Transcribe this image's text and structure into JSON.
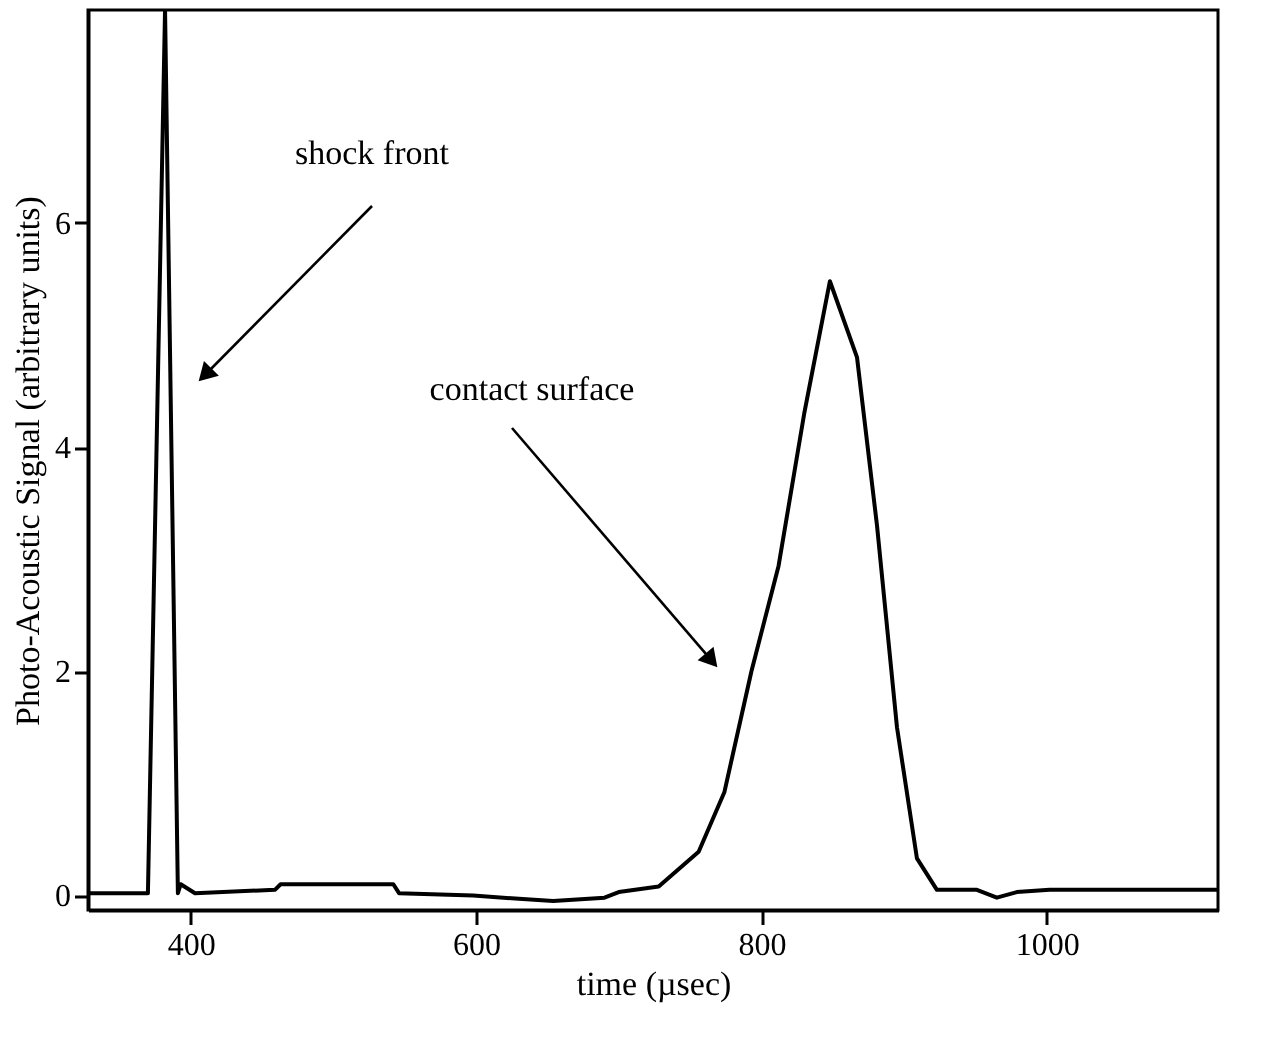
{
  "chart_data": {
    "type": "line",
    "xlabel": "time (µsec)",
    "ylabel": "Photo-Acoustic Signal (arbitrary units)",
    "x": [
      328,
      370,
      382,
      391,
      393,
      403,
      459,
      463,
      542,
      546,
      598,
      630,
      654,
      690,
      700,
      728,
      756,
      774,
      793,
      812,
      830,
      848,
      867,
      881,
      895,
      909,
      923,
      951,
      965,
      979,
      1002,
      1120
    ],
    "series": [
      {
        "color": "#000000",
        "values": [
          0.02,
          0.02,
          7.9,
          0.02,
          0.1,
          0.02,
          0.05,
          0.1,
          0.1,
          0.02,
          0.0,
          -0.03,
          -0.05,
          -0.02,
          0.03,
          0.08,
          0.39,
          0.92,
          2.0,
          2.94,
          4.3,
          5.48,
          4.8,
          3.3,
          1.5,
          0.33,
          0.05,
          0.05,
          -0.02,
          0.03,
          0.05,
          0.05
        ]
      }
    ],
    "annotations": [
      "shock front",
      "contact surface"
    ],
    "xlim": [
      328,
      1120
    ],
    "ylim": [
      -0.13,
      7.9
    ],
    "xticks": [
      400,
      600,
      800,
      1000
    ],
    "yticks": [
      0,
      2,
      4,
      6
    ],
    "grid": false,
    "marker": "none",
    "line_style": "solid"
  }
}
